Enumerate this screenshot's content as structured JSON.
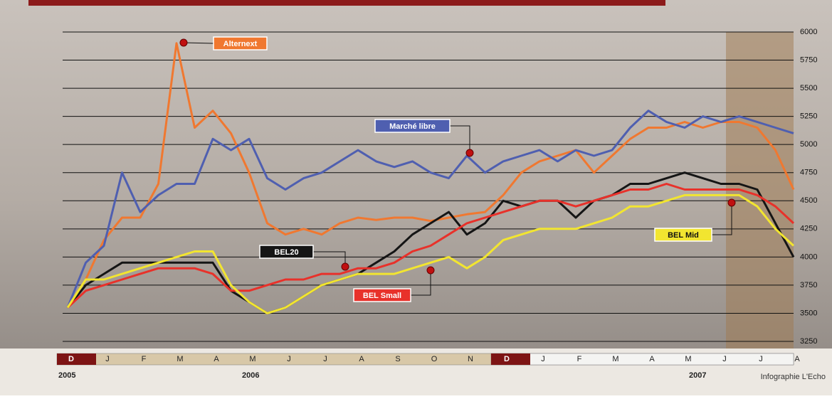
{
  "chart_data": {
    "type": "line",
    "categories": [
      "D",
      null,
      "J",
      null,
      "F",
      null,
      "M",
      null,
      "A",
      null,
      "M",
      null,
      "J",
      null,
      "J",
      null,
      "A",
      null,
      "S",
      null,
      "O",
      null,
      "N",
      null,
      "D",
      null,
      "J",
      null,
      "F",
      null,
      "M",
      null,
      "A",
      null,
      "M",
      null,
      "J",
      null,
      "J",
      null,
      "A"
    ],
    "years": [
      "2005",
      "2006",
      "2007"
    ],
    "credit": "Infographie L'Echo",
    "ylim": [
      3250,
      6000
    ],
    "yticks": [
      3250,
      3500,
      3750,
      4000,
      4250,
      4500,
      4750,
      5000,
      5250,
      5500,
      5750,
      6000
    ],
    "grid": true,
    "series": [
      {
        "name": "Alternext",
        "color": "#f07830",
        "values": [
          3550,
          3800,
          4150,
          4350,
          4350,
          4650,
          5900,
          5150,
          5300,
          5100,
          4750,
          4300,
          4200,
          4250,
          4200,
          4300,
          4350,
          4330,
          4350,
          4350,
          4320,
          4350,
          4380,
          4400,
          4550,
          4750,
          4850,
          4900,
          4950,
          4750,
          4900,
          5050,
          5150,
          5150,
          5200,
          5150,
          5200,
          5200,
          5150,
          4950,
          4600
        ]
      },
      {
        "name": "Marché libre",
        "color": "#4f5fb0",
        "values": [
          3550,
          3950,
          4100,
          4750,
          4400,
          4550,
          4650,
          4650,
          5050,
          4950,
          5050,
          4700,
          4600,
          4700,
          4750,
          4850,
          4950,
          4850,
          4800,
          4850,
          4750,
          4700,
          4900,
          4750,
          4850,
          4900,
          4950,
          4850,
          4950,
          4900,
          4950,
          5150,
          5300,
          5200,
          5150,
          5250,
          5200,
          5250,
          5200,
          5150,
          5100
        ]
      },
      {
        "name": "BEL20",
        "color": "#151515",
        "values": [
          3550,
          3750,
          3850,
          3950,
          3950,
          3950,
          3950,
          3950,
          3950,
          3700,
          3600,
          3500,
          3550,
          3650,
          3750,
          3800,
          3850,
          3950,
          4050,
          4200,
          4300,
          4400,
          4200,
          4300,
          4500,
          4450,
          4500,
          4500,
          4350,
          4500,
          4550,
          4650,
          4650,
          4700,
          4750,
          4700,
          4650,
          4650,
          4600,
          4300,
          4000
        ]
      },
      {
        "name": "BEL Small",
        "color": "#e8312a",
        "values": [
          3550,
          3700,
          3750,
          3800,
          3850,
          3900,
          3900,
          3900,
          3850,
          3700,
          3700,
          3750,
          3800,
          3800,
          3850,
          3850,
          3900,
          3900,
          3950,
          4050,
          4100,
          4200,
          4300,
          4350,
          4400,
          4450,
          4500,
          4500,
          4450,
          4500,
          4550,
          4600,
          4600,
          4650,
          4600,
          4600,
          4600,
          4600,
          4550,
          4450,
          4300
        ]
      },
      {
        "name": "BEL Mid",
        "color": "#f2e530",
        "values": [
          3550,
          3800,
          3800,
          3850,
          3900,
          3950,
          4000,
          4050,
          4050,
          3750,
          3600,
          3500,
          3550,
          3650,
          3750,
          3800,
          3850,
          3850,
          3850,
          3900,
          3950,
          4000,
          3900,
          4000,
          4150,
          4200,
          4250,
          4250,
          4250,
          4300,
          4350,
          4450,
          4450,
          4500,
          4550,
          4550,
          4550,
          4550,
          4450,
          4250,
          4100
        ]
      }
    ]
  }
}
